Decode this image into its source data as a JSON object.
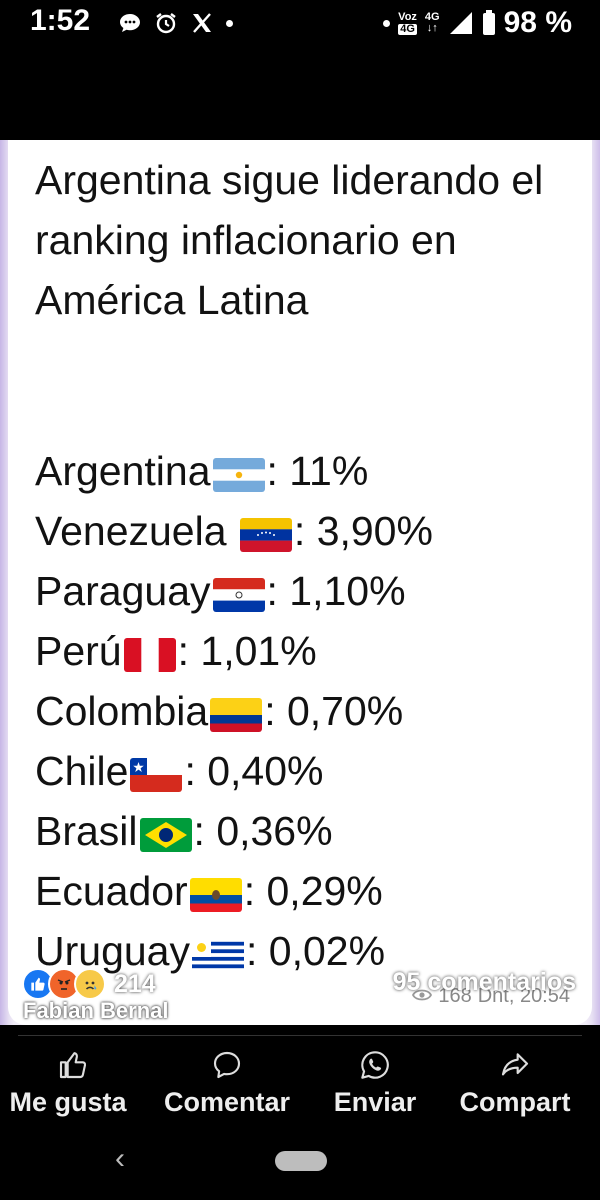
{
  "status_bar": {
    "time": "1:52",
    "left_icons": [
      "chat-bubble-icon",
      "alarm-clock-icon",
      "x-logo-icon",
      "dot-icon"
    ],
    "voz_label": "Voz",
    "voz_tech": "4G",
    "network": "4G",
    "battery_percent": "98 %"
  },
  "post": {
    "headline": "Argentina sigue liderando el ranking inflacionario en América Latina",
    "rows": [
      {
        "country": "Argentina",
        "flag": "argentina-flag-icon",
        "value": ": 11%"
      },
      {
        "country": "Venezuela ",
        "flag": "venezuela-flag-icon",
        "value": ": 3,90%"
      },
      {
        "country": "Paraguay",
        "flag": "paraguay-flag-icon",
        "value": ": 1,10%"
      },
      {
        "country": "Perú",
        "flag": "peru-flag-icon",
        "value": ": 1,01%"
      },
      {
        "country": "Colombia",
        "flag": "colombia-flag-icon",
        "value": ": 0,70%"
      },
      {
        "country": "Chile",
        "flag": "chile-flag-icon",
        "value": ": 0,40%"
      },
      {
        "country": "Brasil",
        "flag": "brasil-flag-icon",
        "value": ": 0,36%"
      },
      {
        "country": "Ecuador",
        "flag": "ecuador-flag-icon",
        "value": ": 0,29%"
      },
      {
        "country": "Uruguay",
        "flag": "uruguay-flag-icon",
        "value": ": 0,02%"
      }
    ],
    "watermark": "Fabian Bernal",
    "telegram_views": "168",
    "telegram_meta": "Dnt, 20:54"
  },
  "reactions": {
    "icons": [
      "like-reaction-icon",
      "angry-reaction-icon",
      "sad-reaction-icon"
    ],
    "count": "214",
    "comments": "95 comentarios"
  },
  "actions": [
    {
      "icon": "thumbs-up-icon",
      "label": "Me gusta"
    },
    {
      "icon": "comment-icon",
      "label": "Comentar"
    },
    {
      "icon": "whatsapp-icon",
      "label": "Enviar"
    },
    {
      "icon": "share-icon",
      "label": "Compart"
    }
  ],
  "colors": {
    "facebook_blue": "#1877f2",
    "text_dark": "#121212",
    "background_black": "#000000"
  }
}
